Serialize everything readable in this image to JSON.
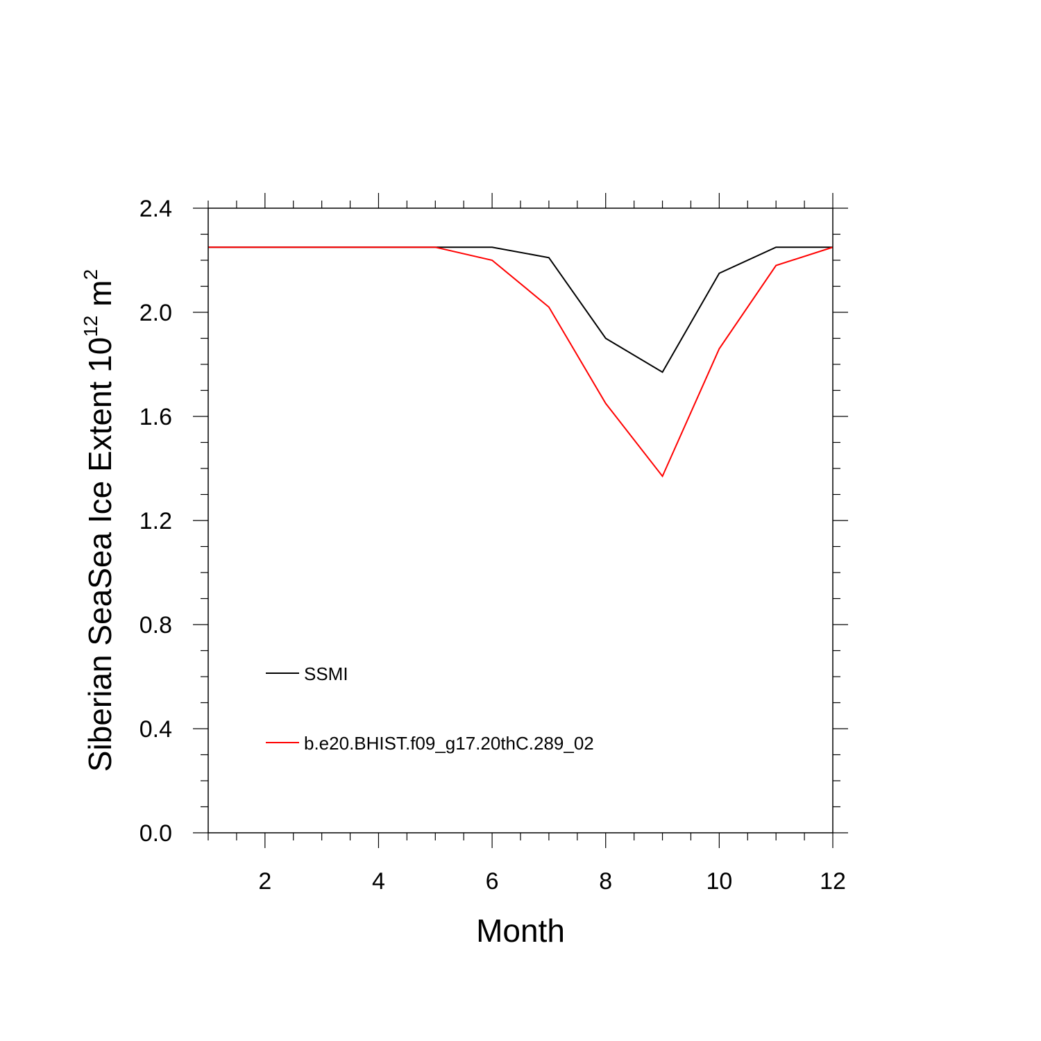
{
  "chart_data": {
    "type": "line",
    "xlabel": "Month",
    "ylabel": {
      "prefix": "Siberian SeaSea Ice Extent 10",
      "exponent": "12",
      "unit": " m",
      "unit_exponent": "2"
    },
    "xlim": [
      1,
      12
    ],
    "ylim": [
      0.0,
      2.4
    ],
    "x_ticks": [
      2,
      4,
      6,
      8,
      10,
      12
    ],
    "x_tick_labels": [
      "2",
      "4",
      "6",
      "8",
      "10",
      "12"
    ],
    "x_minor_step": 0.5,
    "y_ticks": [
      0.0,
      0.4,
      0.8,
      1.2,
      1.6,
      2.0,
      2.4
    ],
    "y_tick_labels": [
      "0.0",
      "0.4",
      "0.8",
      "1.2",
      "1.6",
      "2.0",
      "2.4"
    ],
    "y_minor_step": 0.1,
    "grid": false,
    "legend_position": "lower-left",
    "x": [
      1,
      2,
      3,
      4,
      5,
      6,
      7,
      8,
      9,
      10,
      11,
      12
    ],
    "series": [
      {
        "name": "SSMI",
        "color": "#000000",
        "values": [
          2.25,
          2.25,
          2.25,
          2.25,
          2.25,
          2.25,
          2.21,
          1.9,
          1.77,
          2.15,
          2.25,
          2.25
        ]
      },
      {
        "name": "b.e20.BHIST.f09_g17.20thC.289_02",
        "color": "#ff0000",
        "values": [
          2.25,
          2.25,
          2.25,
          2.25,
          2.25,
          2.2,
          2.02,
          1.65,
          1.37,
          1.86,
          2.18,
          2.25
        ]
      }
    ]
  }
}
